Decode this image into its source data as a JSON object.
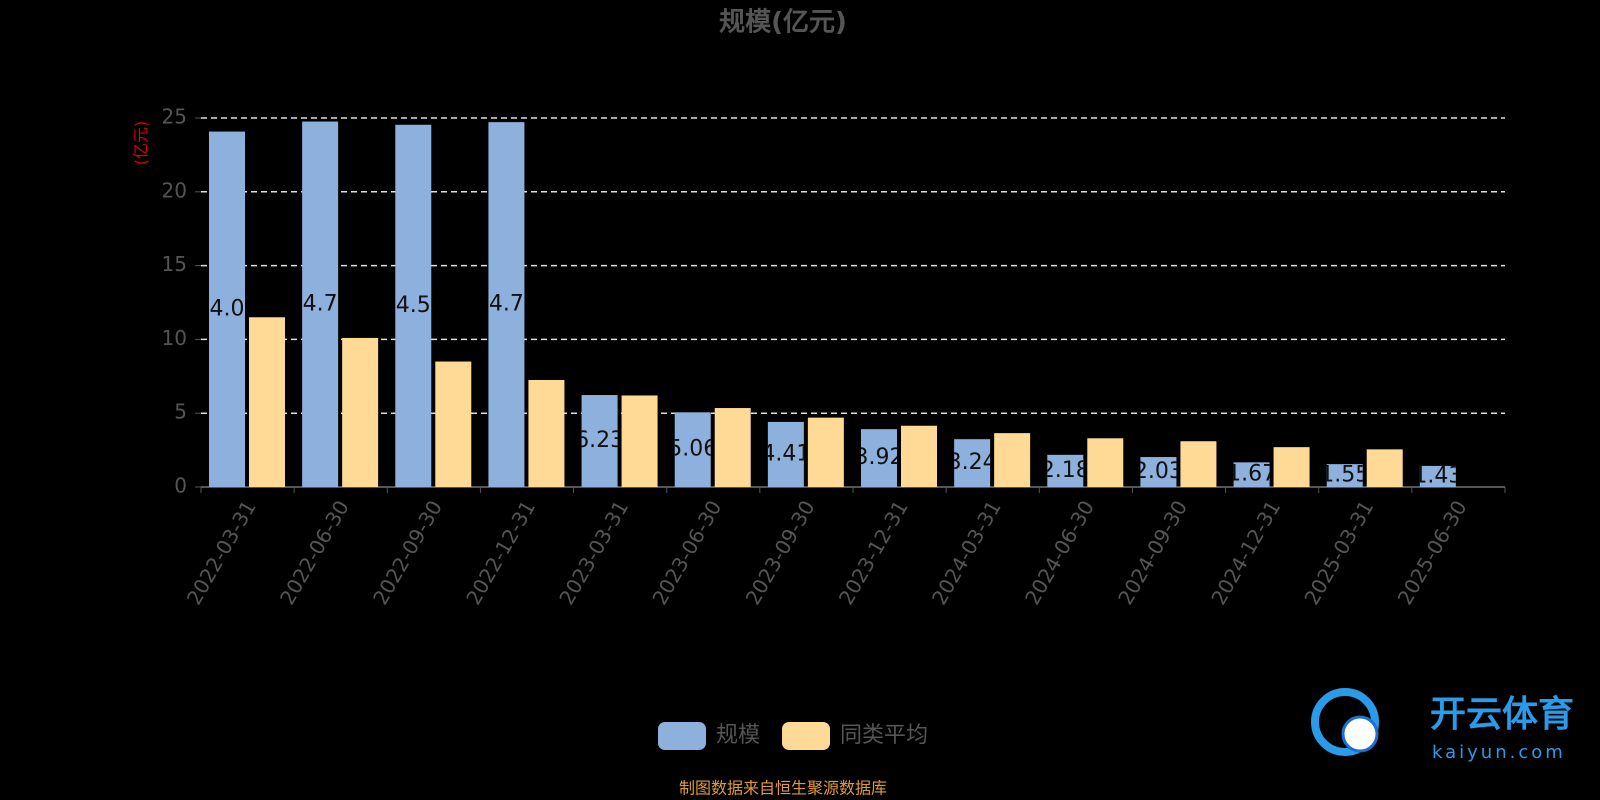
{
  "chart_data": {
    "type": "bar",
    "title": "规模(亿元)",
    "y_axis_label": "(亿元)",
    "categories": [
      "2022-03-31",
      "2022-06-30",
      "2022-09-30",
      "2022-12-31",
      "2023-03-31",
      "2023-06-30",
      "2023-09-30",
      "2023-12-31",
      "2024-03-31",
      "2024-06-30",
      "2024-09-30",
      "2024-12-31",
      "2025-03-31",
      "2025-06-30"
    ],
    "series": [
      {
        "name": "规模",
        "color": "#8eb0dc",
        "values": [
          24.08,
          24.76,
          24.54,
          24.72,
          6.23,
          5.06,
          4.41,
          3.92,
          3.24,
          2.18,
          2.03,
          1.67,
          1.55,
          1.43
        ]
      },
      {
        "name": "同类平均",
        "color": "#ffd996",
        "values": [
          11.5,
          10.1,
          8.5,
          7.25,
          6.2,
          5.35,
          4.7,
          4.15,
          3.65,
          3.3,
          3.1,
          2.7,
          2.55,
          null
        ]
      }
    ],
    "labeled_series": 0,
    "ylim": [
      0,
      25
    ],
    "yticks": [
      0,
      5,
      10,
      15,
      20,
      25
    ],
    "grid": true,
    "source": "制图数据来自恒生聚源数据库",
    "watermark": {
      "brand": "开云体育",
      "site": "kaiyun.com"
    }
  }
}
